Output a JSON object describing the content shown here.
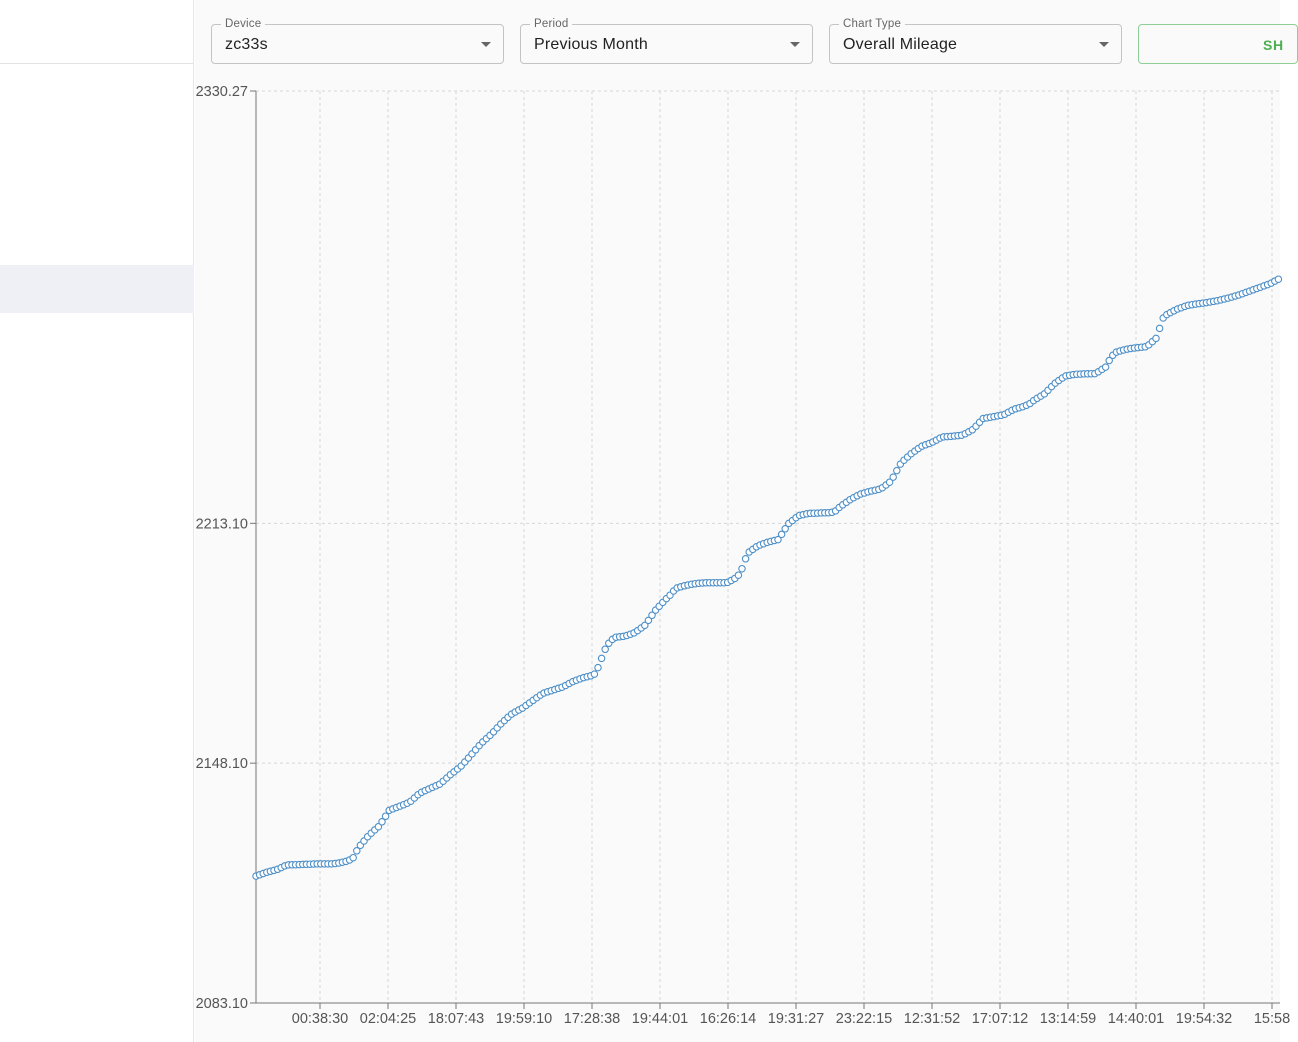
{
  "filters": {
    "device": {
      "label": "Device",
      "value": "zc33s"
    },
    "period": {
      "label": "Period",
      "value": "Previous Month"
    },
    "chart_type": {
      "label": "Chart Type",
      "value": "Overall Mileage"
    },
    "show_button_label": "SH"
  },
  "colors": {
    "series": "#4e8fc7",
    "grid": "#d6d6d6",
    "axis": "#777777",
    "button_accent": "#4caf50"
  },
  "chart_data": {
    "type": "scatter",
    "title": "",
    "xlabel": "",
    "ylabel": "",
    "y_tick_labels": [
      "2330.27",
      "2213.10",
      "2148.10",
      "2083.10"
    ],
    "x_tick_labels": [
      "00:38:30",
      "02:04:25",
      "18:07:43",
      "19:59:10",
      "17:28:38",
      "19:44:01",
      "16:26:14",
      "19:31:27",
      "23:22:15",
      "12:31:52",
      "17:07:12",
      "13:14:59",
      "14:40:01",
      "19:54:32",
      "15:58"
    ],
    "ylim": [
      2083.1,
      2330.27
    ],
    "grid": true,
    "legend": "none",
    "series": [
      {
        "values_x": [
          0.0,
          0.01,
          0.02,
          0.03,
          0.05,
          0.06,
          0.07,
          0.075,
          0.08,
          0.09,
          0.095,
          0.1,
          0.11,
          0.12,
          0.125,
          0.13,
          0.15,
          0.16,
          0.18,
          0.19,
          0.2,
          0.21,
          0.22,
          0.23,
          0.24,
          0.25,
          0.26,
          0.27,
          0.28,
          0.3,
          0.31,
          0.32,
          0.33,
          0.335,
          0.34,
          0.345,
          0.35,
          0.36,
          0.37,
          0.38,
          0.39,
          0.4,
          0.405,
          0.41,
          0.42,
          0.43,
          0.44,
          0.45,
          0.455,
          0.46,
          0.47,
          0.475,
          0.48,
          0.49,
          0.5,
          0.51,
          0.52,
          0.53,
          0.54,
          0.55,
          0.56,
          0.565,
          0.57,
          0.58,
          0.59,
          0.6,
          0.61,
          0.62,
          0.63,
          0.64,
          0.645,
          0.65,
          0.66,
          0.67,
          0.68,
          0.69,
          0.7,
          0.71,
          0.72,
          0.73,
          0.74,
          0.75,
          0.755,
          0.76,
          0.77,
          0.78,
          0.79,
          0.8,
          0.81,
          0.82,
          0.83,
          0.835,
          0.84,
          0.85,
          0.86,
          0.87,
          0.88,
          0.885,
          0.89,
          0.9,
          0.91,
          0.92,
          0.93,
          0.94,
          0.95,
          0.96,
          0.97,
          0.98,
          0.99,
          1.0
        ],
        "values": [
          2117.5,
          2118.5,
          2119.2,
          2120.5,
          2120.7,
          2120.8,
          2120.8,
          2120.8,
          2121.0,
          2121.6,
          2122.5,
          2125.2,
          2128.5,
          2131.0,
          2133.0,
          2135.3,
          2137.5,
          2140.0,
          2142.5,
          2145.0,
          2147.2,
          2150.3,
          2153.5,
          2156.0,
          2159.0,
          2161.5,
          2163.0,
          2165.0,
          2167.0,
          2168.8,
          2170.3,
          2171.3,
          2172.0,
          2174.5,
          2178.5,
          2180.8,
          2182.2,
          2182.5,
          2183.5,
          2185.5,
          2189.5,
          2192.5,
          2193.8,
          2195.5,
          2196.3,
          2196.8,
          2197.0,
          2197.0,
          2197.0,
          2197.0,
          2198.5,
          2201.0,
          2205.0,
          2207.0,
          2208.0,
          2208.7,
          2213.0,
          2215.2,
          2215.8,
          2215.9,
          2216.0,
          2216.2,
          2217.5,
          2219.5,
          2221.0,
          2221.8,
          2222.4,
          2224.5,
          2229.5,
          2232.0,
          2233.0,
          2234.0,
          2235.0,
          2236.5,
          2236.7,
          2237.0,
          2238.5,
          2241.5,
          2242.0,
          2242.5,
          2244.0,
          2244.8,
          2245.4,
          2246.5,
          2248.2,
          2251.0,
          2253.0,
          2253.5,
          2253.6,
          2253.7,
          2255.5,
          2258.2,
          2259.5,
          2260.3,
          2260.7,
          2261.0,
          2263.5,
          2268.5,
          2269.8,
          2271.2,
          2272.2,
          2272.6,
          2273.0,
          2273.5,
          2274.2,
          2275.0,
          2276.0,
          2277.0,
          2278.0,
          2279.5
        ]
      }
    ]
  }
}
